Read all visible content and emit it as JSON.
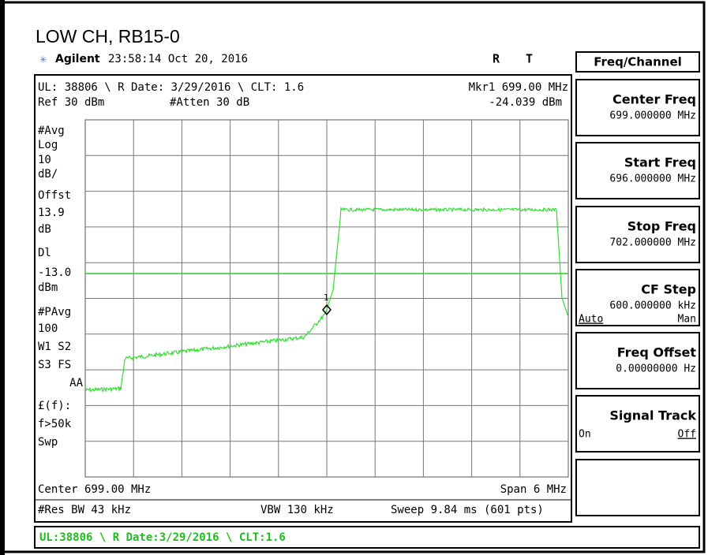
{
  "title": "LOW CH, RB15-0",
  "header": {
    "brand": "Agilent",
    "time": "23:58:14  Oct 20, 2016",
    "flag_r": "R",
    "flag_t": "T"
  },
  "screen": {
    "top_line": "UL: 38806 \\ R Date: 3/29/2016 \\ CLT: 1.6",
    "marker": "Mkr1  699.00 MHz",
    "ref": "Ref 30 dBm",
    "atten": "#Atten 30 dB",
    "marker_value": "-24.039 dBm",
    "marker_id": "1",
    "left_labels": [
      "#Avg",
      "Log",
      "10",
      "dB/",
      "Offst",
      "13.9",
      "dB",
      "Dl",
      "-13.0",
      "dBm",
      "#PAvg",
      "100",
      "W1  S2",
      "S3  FS",
      "AA",
      "£(f):",
      "f>50k",
      "Swp"
    ],
    "center": "Center 699.00 MHz",
    "span": "Span 6 MHz",
    "res_bw": "#Res BW 43 kHz",
    "vbw": "VBW 130 kHz",
    "sweep": "Sweep 9.84 ms (601 pts)"
  },
  "menu_title": "Freq/Channel",
  "softkeys": [
    {
      "label": "Center Freq",
      "value": "699.000000 MHz"
    },
    {
      "label": "Start Freq",
      "value": "696.000000 MHz"
    },
    {
      "label": "Stop Freq",
      "value": "702.000000 MHz"
    },
    {
      "label": "CF Step",
      "value": "600.000000 kHz",
      "options": [
        "Auto",
        "Man"
      ]
    },
    {
      "label": "Freq Offset",
      "value": "0.00000000  Hz"
    },
    {
      "label": "Signal Track",
      "options": [
        "On",
        "Off"
      ]
    },
    {}
  ],
  "status_bar": "UL:38806 \\ R Date:3/29/2016 \\ CLT:1.6"
}
